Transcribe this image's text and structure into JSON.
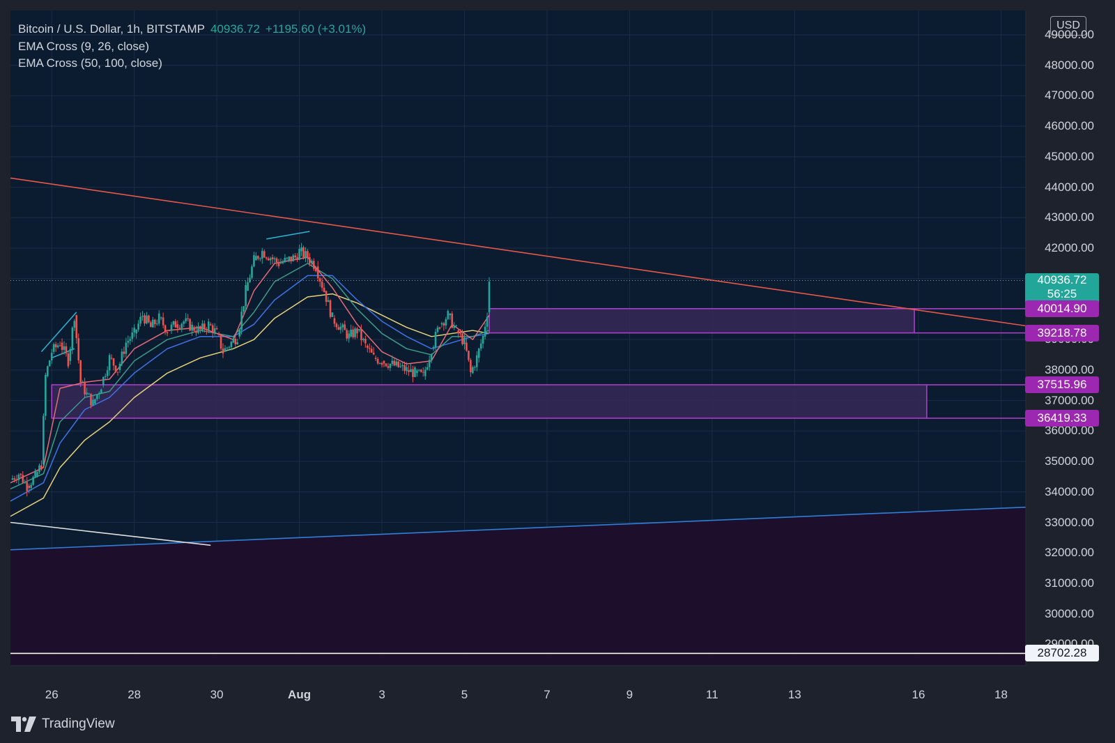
{
  "header": {
    "symbol": "Bitcoin / U.S. Dollar, 1h, BITSTAMP",
    "price": "40936.72",
    "change": "+1195.60 (+3.01%)",
    "indicators": [
      "EMA Cross (9, 26, close)",
      "EMA Cross (50, 100, close)"
    ]
  },
  "currency": "USD",
  "brand": "TradingView",
  "colors": {
    "background": "#0c1c30",
    "frame": "#1e222d",
    "grid": "#1b2d44",
    "up": "#26a69a",
    "down": "#ef5350",
    "zone_fill": "#3b2a5c",
    "zone_border": "#b53fcf",
    "resistance_line": "#e8574a",
    "support_line": "#2f7fd8",
    "ema_fast": "#e56b76",
    "ema_mid": "#3f9a8a",
    "ema_slow_a": "#3f73e6",
    "ema_slow_b": "#e7d27a",
    "tag_price": "#22a69a",
    "tag_zone": "#9c27b0",
    "tag_low": "#f0f3fa"
  },
  "chart_data": {
    "type": "line",
    "title": "Bitcoin / U.S. Dollar, 1h, BITSTAMP",
    "x_ticks": [
      "26",
      "28",
      "30",
      "Aug",
      "3",
      "5",
      "7",
      "9",
      "11",
      "13",
      "16",
      "18"
    ],
    "x_tick_days": [
      26,
      28,
      30,
      32,
      34,
      36,
      38,
      40,
      42,
      44,
      47,
      49
    ],
    "y_ticks": [
      29000,
      30000,
      31000,
      32000,
      33000,
      34000,
      35000,
      36000,
      37000,
      38000,
      39000,
      40000,
      41000,
      42000,
      43000,
      44000,
      45000,
      46000,
      47000,
      48000,
      49000
    ],
    "y_tick_labels": [
      "29000.00",
      "30000.00",
      "31000.00",
      "32000.00",
      "33000.00",
      "34000.00",
      "35000.00",
      "36000.00",
      "37000.00",
      "38000.00",
      "39000.00",
      "40000.00",
      "41000.00",
      "42000.00",
      "43000.00",
      "44000.00",
      "45000.00",
      "46000.00",
      "47000.00",
      "48000.00",
      "49000.00"
    ],
    "ylim": [
      28300,
      49800
    ],
    "xlim_days": [
      25.0,
      49.6
    ],
    "price_series": [
      [
        25.0,
        34400
      ],
      [
        25.2,
        34600
      ],
      [
        25.4,
        34200
      ],
      [
        25.6,
        34500
      ],
      [
        25.75,
        34900
      ],
      [
        25.85,
        37800
      ],
      [
        26.0,
        38600
      ],
      [
        26.2,
        38900
      ],
      [
        26.4,
        38300
      ],
      [
        26.55,
        39800
      ],
      [
        26.7,
        37600
      ],
      [
        26.85,
        37200
      ],
      [
        27.0,
        36900
      ],
      [
        27.2,
        37500
      ],
      [
        27.4,
        38400
      ],
      [
        27.6,
        38000
      ],
      [
        27.8,
        38900
      ],
      [
        28.0,
        39200
      ],
      [
        28.2,
        39800
      ],
      [
        28.4,
        39400
      ],
      [
        28.6,
        39700
      ],
      [
        28.8,
        39300
      ],
      [
        29.0,
        39500
      ],
      [
        29.2,
        39600
      ],
      [
        29.4,
        39400
      ],
      [
        29.6,
        39300
      ],
      [
        29.8,
        39500
      ],
      [
        30.0,
        39200
      ],
      [
        30.15,
        38600
      ],
      [
        30.35,
        38900
      ],
      [
        30.5,
        39100
      ],
      [
        30.7,
        40600
      ],
      [
        30.9,
        41600
      ],
      [
        31.1,
        41900
      ],
      [
        31.3,
        41700
      ],
      [
        31.5,
        41500
      ],
      [
        31.7,
        41600
      ],
      [
        31.9,
        41700
      ],
      [
        32.0,
        41900
      ],
      [
        32.2,
        41700
      ],
      [
        32.4,
        41400
      ],
      [
        32.6,
        40600
      ],
      [
        32.8,
        39700
      ],
      [
        33.0,
        39400
      ],
      [
        33.2,
        39100
      ],
      [
        33.4,
        39300
      ],
      [
        33.6,
        38800
      ],
      [
        33.8,
        38400
      ],
      [
        34.0,
        38300
      ],
      [
        34.2,
        38200
      ],
      [
        34.4,
        38100
      ],
      [
        34.6,
        38000
      ],
      [
        34.8,
        37900
      ],
      [
        35.0,
        37800
      ],
      [
        35.2,
        38700
      ],
      [
        35.4,
        39500
      ],
      [
        35.6,
        39800
      ],
      [
        35.8,
        39300
      ],
      [
        36.0,
        38900
      ],
      [
        36.15,
        37900
      ],
      [
        36.3,
        38400
      ],
      [
        36.45,
        39100
      ],
      [
        36.55,
        39900
      ],
      [
        36.6,
        40936.72
      ]
    ],
    "ema_9": [
      [
        25.0,
        34300
      ],
      [
        25.8,
        34800
      ],
      [
        26.2,
        37400
      ],
      [
        26.8,
        37600
      ],
      [
        27.4,
        37700
      ],
      [
        28.0,
        38700
      ],
      [
        28.8,
        39300
      ],
      [
        29.6,
        39400
      ],
      [
        30.4,
        39000
      ],
      [
        30.9,
        40600
      ],
      [
        31.4,
        41500
      ],
      [
        32.2,
        41700
      ],
      [
        32.8,
        40700
      ],
      [
        33.4,
        39500
      ],
      [
        34.0,
        38600
      ],
      [
        34.6,
        38200
      ],
      [
        35.2,
        38300
      ],
      [
        35.7,
        39500
      ],
      [
        36.2,
        39000
      ],
      [
        36.6,
        39800
      ]
    ],
    "ema_26": [
      [
        25.0,
        34100
      ],
      [
        25.8,
        34600
      ],
      [
        26.2,
        36300
      ],
      [
        26.8,
        37100
      ],
      [
        27.4,
        37300
      ],
      [
        28.0,
        38300
      ],
      [
        28.8,
        39000
      ],
      [
        29.6,
        39300
      ],
      [
        30.4,
        39100
      ],
      [
        30.9,
        39900
      ],
      [
        31.4,
        40900
      ],
      [
        32.2,
        41500
      ],
      [
        32.8,
        41000
      ],
      [
        33.4,
        40000
      ],
      [
        34.0,
        39200
      ],
      [
        34.6,
        38700
      ],
      [
        35.2,
        38500
      ],
      [
        35.7,
        39100
      ],
      [
        36.2,
        39100
      ],
      [
        36.6,
        39300
      ]
    ],
    "ema_50": [
      [
        25.0,
        33700
      ],
      [
        25.8,
        34300
      ],
      [
        26.2,
        35600
      ],
      [
        26.8,
        36700
      ],
      [
        27.4,
        37100
      ],
      [
        28.0,
        37900
      ],
      [
        28.8,
        38700
      ],
      [
        29.6,
        39100
      ],
      [
        30.4,
        39100
      ],
      [
        30.9,
        39500
      ],
      [
        31.4,
        40300
      ],
      [
        32.2,
        41100
      ],
      [
        32.8,
        41100
      ],
      [
        33.4,
        40300
      ],
      [
        34.0,
        39600
      ],
      [
        34.6,
        39100
      ],
      [
        35.2,
        38700
      ],
      [
        35.7,
        38900
      ],
      [
        36.2,
        39100
      ],
      [
        36.6,
        39200
      ]
    ],
    "ema_100": [
      [
        25.0,
        33200
      ],
      [
        25.8,
        33800
      ],
      [
        26.2,
        34800
      ],
      [
        26.8,
        35700
      ],
      [
        27.4,
        36300
      ],
      [
        28.0,
        37100
      ],
      [
        28.8,
        37900
      ],
      [
        29.6,
        38400
      ],
      [
        30.4,
        38700
      ],
      [
        30.9,
        39000
      ],
      [
        31.4,
        39700
      ],
      [
        32.2,
        40400
      ],
      [
        32.8,
        40500
      ],
      [
        33.4,
        40200
      ],
      [
        34.0,
        39800
      ],
      [
        34.6,
        39400
      ],
      [
        35.2,
        39100
      ],
      [
        35.7,
        39200
      ],
      [
        36.2,
        39300
      ],
      [
        36.6,
        39200
      ]
    ],
    "resistance_trendline": [
      [
        25.0,
        44300
      ],
      [
        49.6,
        39450
      ]
    ],
    "support_trendline": [
      [
        25.0,
        32100
      ],
      [
        49.6,
        33500
      ]
    ],
    "white_trendline": [
      [
        25.0,
        33000
      ],
      [
        29.85,
        32250
      ]
    ],
    "divergence_lines": [
      [
        [
          25.75,
          38600
        ],
        [
          26.6,
          39900
        ]
      ],
      [
        [
          26.0,
          38400
        ],
        [
          26.55,
          38700
        ]
      ],
      [
        [
          31.2,
          42300
        ],
        [
          32.25,
          42550
        ]
      ]
    ],
    "zones": [
      {
        "x_start": 36.6,
        "x_end": 46.9,
        "top": 40014.9,
        "bottom": 39218.78
      },
      {
        "x_start": 26.0,
        "x_end": 47.2,
        "top": 37515.96,
        "bottom": 36419.33
      }
    ],
    "lower_band": {
      "top_start": 32100,
      "top_end": 33500,
      "bottom": 28300
    },
    "low_line": 28702.28,
    "price_labels": [
      {
        "value": 40936.72,
        "text": "40936.72",
        "sub": "56:25",
        "kind": "price"
      },
      {
        "value": 40014.9,
        "text": "40014.90",
        "kind": "zone"
      },
      {
        "value": 39218.78,
        "text": "39218.78",
        "kind": "zone"
      },
      {
        "value": 37515.96,
        "text": "37515.96",
        "kind": "zone"
      },
      {
        "value": 36419.33,
        "text": "36419.33",
        "kind": "zone"
      },
      {
        "value": 28702.28,
        "text": "28702.28",
        "kind": "low"
      }
    ]
  }
}
